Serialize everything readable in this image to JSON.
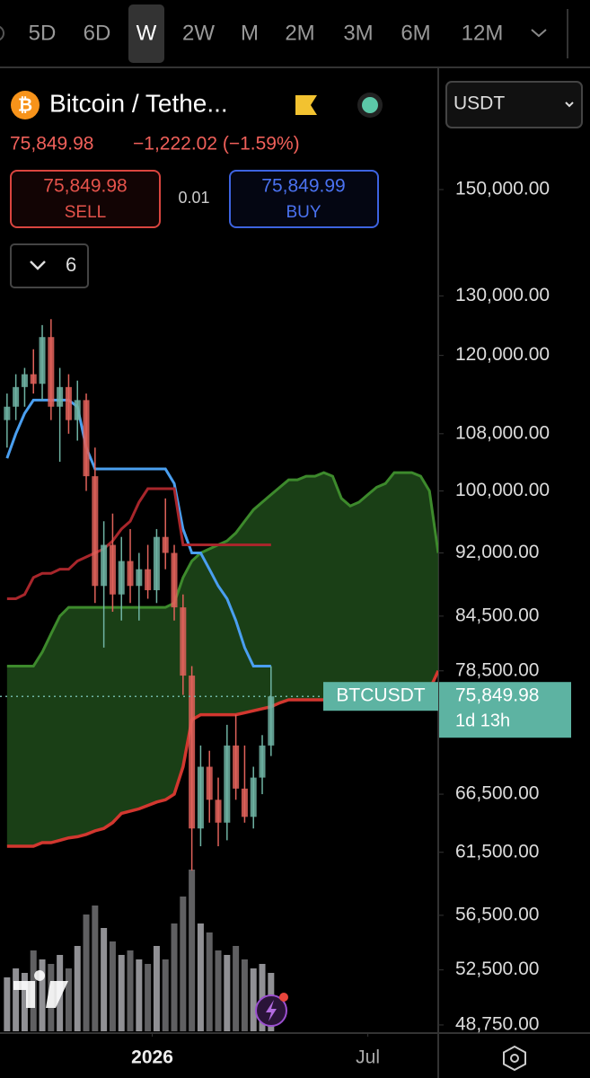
{
  "toolbar": {
    "intervals": [
      "5D",
      "6D",
      "W",
      "2W",
      "M",
      "2M",
      "3M",
      "6M",
      "12M"
    ],
    "selected_interval": 2
  },
  "header": {
    "symbol": "Bitcoin / Tethe...",
    "price": "75,849.98",
    "change": "−1,222.02 (−1.59%)",
    "currency": "USDT"
  },
  "trade": {
    "sell_price": "75,849.98",
    "sell_label": "SELL",
    "spread": "0.01",
    "buy_price": "75,849.99",
    "buy_label": "BUY"
  },
  "indicators": {
    "count": "6"
  },
  "price_tag": {
    "symbol": "BTCUSDT",
    "price": "75,849.98",
    "countdown": "1d 13h"
  },
  "chart_data": {
    "type": "candlestick",
    "log_scale": true,
    "ylim": [
      48220,
      176800
    ],
    "xlim": [
      -0.8,
      49
    ],
    "yticks": [
      {
        "value": 150000,
        "label": "150,000.00"
      },
      {
        "value": 130000,
        "label": "130,000.00"
      },
      {
        "value": 120000,
        "label": "120,000.00"
      },
      {
        "value": 108000,
        "label": "108,000.00"
      },
      {
        "value": 100000,
        "label": "100,000.00"
      },
      {
        "value": 92000,
        "label": "92,000.00"
      },
      {
        "value": 84500,
        "label": "84,500.00"
      },
      {
        "value": 78500,
        "label": "78,500.00"
      },
      {
        "value": 66500,
        "label": "66,500.00"
      },
      {
        "value": 61500,
        "label": "61,500.00"
      },
      {
        "value": 56500,
        "label": "56,500.00"
      },
      {
        "value": 52500,
        "label": "52,500.00"
      },
      {
        "value": 48750,
        "label": "48,750.00"
      }
    ],
    "xticks": [
      {
        "value": 16.5,
        "label": "2026"
      },
      {
        "value": 41,
        "label": "Jul"
      }
    ],
    "up_color": "#6fb3a3",
    "down_color": "#e0625a",
    "open": [
      110000,
      112000,
      115000,
      117000,
      115500,
      123000,
      112000,
      115000,
      110000,
      113000,
      102000,
      88000,
      93000,
      87000,
      91000,
      88000,
      90000,
      87500,
      94000,
      92000,
      85500,
      78000,
      63500,
      69000,
      66000,
      64000,
      71000,
      67000,
      64500,
      68000,
      71000
    ],
    "high": [
      114000,
      117000,
      118000,
      121000,
      125000,
      126000,
      118000,
      117000,
      116000,
      114000,
      106000,
      96000,
      97000,
      94000,
      95000,
      92000,
      93000,
      95000,
      99000,
      93000,
      87000,
      79000,
      71000,
      70500,
      68000,
      73000,
      74000,
      71000,
      69000,
      72000,
      79000
    ],
    "low": [
      106000,
      110000,
      112000,
      114000,
      113000,
      110000,
      104000,
      108000,
      107000,
      100000,
      86000,
      81000,
      85000,
      84000,
      86000,
      84000,
      86500,
      86000,
      90000,
      84000,
      76000,
      60000,
      62000,
      64000,
      62000,
      62500,
      66000,
      64000,
      63500,
      66500,
      70000
    ],
    "close": [
      112000,
      115000,
      117000,
      115500,
      123000,
      112000,
      115000,
      110000,
      113000,
      102000,
      88000,
      93000,
      87000,
      91000,
      88000,
      90000,
      87500,
      94000,
      92000,
      85500,
      78000,
      63500,
      69000,
      66000,
      64000,
      71000,
      67000,
      64500,
      68000,
      71000,
      75849.98
    ],
    "volume": [
      60,
      70,
      65,
      90,
      80,
      75,
      85,
      70,
      95,
      130,
      140,
      115,
      100,
      85,
      90,
      80,
      75,
      95,
      80,
      120,
      150,
      180,
      120,
      110,
      90,
      85,
      95,
      80,
      70,
      75,
      65
    ],
    "volume_color": "#a0a0a4",
    "lines": [
      {
        "color": "#4a9ff0",
        "values": [
          104500,
          108000,
          111000,
          113000,
          113000,
          113000,
          113000,
          113000,
          112000,
          106000,
          103000,
          103000,
          103000,
          103000,
          103000,
          103000,
          103000,
          103000,
          103000,
          101000,
          95000,
          92000,
          92000,
          90000,
          88000,
          86500,
          84000,
          81000,
          79000,
          79000,
          79000
        ]
      },
      {
        "color": "#a8262b",
        "values": [
          86500,
          86500,
          87000,
          89000,
          89500,
          89500,
          90000,
          90000,
          91000,
          91500,
          92000,
          92500,
          93500,
          95000,
          96000,
          98500,
          100300,
          100300,
          100300,
          100300,
          93000,
          93000,
          93000,
          93000,
          93000,
          93000,
          93000,
          93000,
          93000,
          93000,
          93000
        ]
      }
    ],
    "cloud": {
      "fill": "#1f4a1a",
      "upper_color": "#3d8a2c",
      "lower_color": "#d2372f",
      "upper": [
        79000,
        79000,
        79000,
        79000,
        80500,
        82500,
        84500,
        85500,
        85500,
        85500,
        85500,
        85500,
        85500,
        85500,
        85500,
        85500,
        85500,
        85500,
        85500,
        86000,
        89000,
        91000,
        92000,
        92500,
        93000,
        93500,
        94500,
        96000,
        97500,
        98500,
        99500,
        100500,
        101500,
        101500,
        102000,
        102000,
        102500,
        102000,
        99000,
        98000,
        98500,
        99500,
        100500,
        101000,
        102500,
        102500,
        102500,
        102000,
        100000,
        92000
      ],
      "lower": [
        62000,
        62000,
        62000,
        62000,
        62300,
        62300,
        62500,
        62700,
        62800,
        63000,
        63300,
        63500,
        64000,
        64800,
        65000,
        65200,
        65500,
        65800,
        66000,
        66500,
        69000,
        73500,
        74000,
        74000,
        74000,
        74000,
        74000,
        74200,
        74400,
        74600,
        74800,
        75200,
        75500,
        75500,
        75500,
        75500,
        75500,
        75500,
        75500,
        75500,
        75500,
        75500,
        75500,
        75500,
        75500,
        75500,
        75500,
        75500,
        76500,
        78500
      ]
    }
  }
}
